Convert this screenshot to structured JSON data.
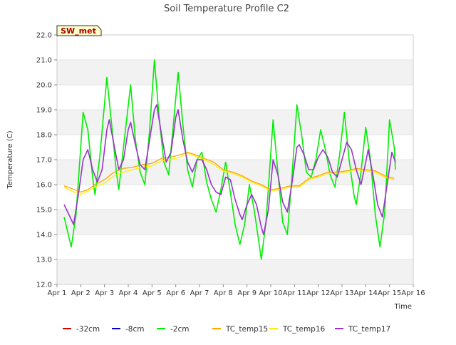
{
  "chart_data": {
    "type": "line",
    "title": "Soil Temperature Profile C2",
    "badge": "SW_met",
    "xlabel": "Time",
    "ylabel": "Temperature (C)",
    "x_ticks": [
      "Apr 1",
      "Apr 2",
      "Apr 3",
      "Apr 4",
      "Apr 5",
      "Apr 6",
      "Apr 7",
      "Apr 8",
      "Apr 9",
      "Apr 10",
      "Apr 11",
      "Apr 12",
      "Apr 13",
      "Apr 14",
      "Apr 15",
      "Apr 16"
    ],
    "x_range_days": [
      1,
      16
    ],
    "y_ticks": [
      "12.0",
      "13.0",
      "14.0",
      "15.0",
      "16.0",
      "17.0",
      "18.0",
      "19.0",
      "20.0",
      "21.0",
      "22.0"
    ],
    "ylim": [
      12.0,
      22.0
    ],
    "grid": "horizontal bands",
    "legend_position": "bottom",
    "legend": [
      {
        "name": "-32cm",
        "color": "#cc0000"
      },
      {
        "name": "-8cm",
        "color": "#0000cc"
      },
      {
        "name": "-2cm",
        "color": "#00ee00"
      },
      {
        "name": "TC_temp15",
        "color": "#ffa500"
      },
      {
        "name": "TC_temp16",
        "color": "#ffee00"
      },
      {
        "name": "TC_temp17",
        "color": "#9933cc"
      }
    ],
    "series": [
      {
        "name": "-2cm",
        "color": "#00ee00",
        "points": [
          [
            1.3,
            14.7
          ],
          [
            1.6,
            13.5
          ],
          [
            1.8,
            14.8
          ],
          [
            2.1,
            18.9
          ],
          [
            2.3,
            18.2
          ],
          [
            2.5,
            16.3
          ],
          [
            2.6,
            15.6
          ],
          [
            2.8,
            17.1
          ],
          [
            3.1,
            20.3
          ],
          [
            3.3,
            18.4
          ],
          [
            3.5,
            16.5
          ],
          [
            3.6,
            15.8
          ],
          [
            3.8,
            17.5
          ],
          [
            4.1,
            20.0
          ],
          [
            4.3,
            17.8
          ],
          [
            4.5,
            16.5
          ],
          [
            4.7,
            16.0
          ],
          [
            4.9,
            18.2
          ],
          [
            5.1,
            21.0
          ],
          [
            5.3,
            18.7
          ],
          [
            5.5,
            16.9
          ],
          [
            5.7,
            16.4
          ],
          [
            5.9,
            18.4
          ],
          [
            6.1,
            20.5
          ],
          [
            6.3,
            18.4
          ],
          [
            6.5,
            16.6
          ],
          [
            6.7,
            15.9
          ],
          [
            6.9,
            17.0
          ],
          [
            7.1,
            17.3
          ],
          [
            7.3,
            16.1
          ],
          [
            7.5,
            15.4
          ],
          [
            7.7,
            14.9
          ],
          [
            7.9,
            15.8
          ],
          [
            8.1,
            16.9
          ],
          [
            8.3,
            15.7
          ],
          [
            8.5,
            14.4
          ],
          [
            8.7,
            13.6
          ],
          [
            8.9,
            14.4
          ],
          [
            9.1,
            16.0
          ],
          [
            9.3,
            15.0
          ],
          [
            9.5,
            13.7
          ],
          [
            9.6,
            13.0
          ],
          [
            9.8,
            14.5
          ],
          [
            10.1,
            18.6
          ],
          [
            10.3,
            16.5
          ],
          [
            10.5,
            14.5
          ],
          [
            10.7,
            14.0
          ],
          [
            10.9,
            16.4
          ],
          [
            11.1,
            19.2
          ],
          [
            11.3,
            18.0
          ],
          [
            11.5,
            16.5
          ],
          [
            11.7,
            16.3
          ],
          [
            11.9,
            17.0
          ],
          [
            12.1,
            18.2
          ],
          [
            12.3,
            17.4
          ],
          [
            12.5,
            16.4
          ],
          [
            12.7,
            15.9
          ],
          [
            12.9,
            17.2
          ],
          [
            13.1,
            18.9
          ],
          [
            13.3,
            17.0
          ],
          [
            13.5,
            15.6
          ],
          [
            13.6,
            15.2
          ],
          [
            13.8,
            16.5
          ],
          [
            14.0,
            18.3
          ],
          [
            14.2,
            17.0
          ],
          [
            14.4,
            14.8
          ],
          [
            14.6,
            13.5
          ],
          [
            14.8,
            14.9
          ],
          [
            15.0,
            18.6
          ],
          [
            15.2,
            17.5
          ],
          [
            15.25,
            16.6
          ]
        ]
      },
      {
        "name": "TC_temp15",
        "color": "#ffa500",
        "points": [
          [
            1.3,
            15.95
          ],
          [
            1.6,
            15.85
          ],
          [
            2.0,
            15.7
          ],
          [
            2.3,
            15.8
          ],
          [
            2.6,
            16.0
          ],
          [
            3.0,
            16.2
          ],
          [
            3.4,
            16.5
          ],
          [
            3.8,
            16.65
          ],
          [
            4.2,
            16.7
          ],
          [
            4.6,
            16.8
          ],
          [
            5.0,
            16.85
          ],
          [
            5.4,
            17.05
          ],
          [
            5.8,
            17.1
          ],
          [
            6.2,
            17.2
          ],
          [
            6.5,
            17.3
          ],
          [
            6.8,
            17.2
          ],
          [
            7.2,
            17.05
          ],
          [
            7.6,
            16.9
          ],
          [
            8.0,
            16.6
          ],
          [
            8.4,
            16.5
          ],
          [
            8.8,
            16.35
          ],
          [
            9.2,
            16.15
          ],
          [
            9.6,
            16.0
          ],
          [
            10.0,
            15.8
          ],
          [
            10.4,
            15.85
          ],
          [
            10.8,
            15.95
          ],
          [
            11.2,
            15.95
          ],
          [
            11.6,
            16.25
          ],
          [
            12.0,
            16.35
          ],
          [
            12.4,
            16.5
          ],
          [
            12.8,
            16.5
          ],
          [
            13.2,
            16.55
          ],
          [
            13.6,
            16.65
          ],
          [
            14.0,
            16.6
          ],
          [
            14.4,
            16.55
          ],
          [
            14.8,
            16.35
          ],
          [
            15.2,
            16.25
          ]
        ]
      },
      {
        "name": "TC_temp16",
        "color": "#ffee00",
        "points": [
          [
            1.3,
            15.9
          ],
          [
            1.6,
            15.75
          ],
          [
            2.0,
            15.6
          ],
          [
            2.3,
            15.75
          ],
          [
            2.6,
            15.9
          ],
          [
            3.0,
            16.05
          ],
          [
            3.4,
            16.35
          ],
          [
            3.8,
            16.5
          ],
          [
            4.2,
            16.6
          ],
          [
            4.6,
            16.7
          ],
          [
            5.0,
            16.75
          ],
          [
            5.4,
            16.95
          ],
          [
            5.8,
            17.0
          ],
          [
            6.2,
            17.1
          ],
          [
            6.5,
            17.25
          ],
          [
            6.8,
            17.15
          ],
          [
            7.2,
            17.0
          ],
          [
            7.6,
            16.8
          ],
          [
            8.0,
            16.55
          ],
          [
            8.4,
            16.45
          ],
          [
            8.8,
            16.3
          ],
          [
            9.2,
            16.1
          ],
          [
            9.6,
            15.95
          ],
          [
            10.0,
            15.75
          ],
          [
            10.4,
            15.8
          ],
          [
            10.8,
            15.9
          ],
          [
            11.2,
            15.9
          ],
          [
            11.6,
            16.2
          ],
          [
            12.0,
            16.3
          ],
          [
            12.4,
            16.45
          ],
          [
            12.8,
            16.45
          ],
          [
            13.2,
            16.5
          ],
          [
            13.6,
            16.6
          ],
          [
            14.0,
            16.55
          ],
          [
            14.4,
            16.5
          ],
          [
            14.8,
            16.3
          ],
          [
            15.2,
            16.2
          ]
        ]
      },
      {
        "name": "TC_temp17",
        "color": "#9933cc",
        "points": [
          [
            1.3,
            15.2
          ],
          [
            1.5,
            14.8
          ],
          [
            1.7,
            14.4
          ],
          [
            1.9,
            15.6
          ],
          [
            2.1,
            17.0
          ],
          [
            2.3,
            17.4
          ],
          [
            2.5,
            16.6
          ],
          [
            2.7,
            16.1
          ],
          [
            2.9,
            16.6
          ],
          [
            3.1,
            18.2
          ],
          [
            3.2,
            18.6
          ],
          [
            3.4,
            17.6
          ],
          [
            3.6,
            16.6
          ],
          [
            3.8,
            17.0
          ],
          [
            4.0,
            18.2
          ],
          [
            4.1,
            18.5
          ],
          [
            4.3,
            17.6
          ],
          [
            4.5,
            16.8
          ],
          [
            4.7,
            16.6
          ],
          [
            4.9,
            17.8
          ],
          [
            5.1,
            19.0
          ],
          [
            5.2,
            19.2
          ],
          [
            5.4,
            18.0
          ],
          [
            5.6,
            16.9
          ],
          [
            5.8,
            17.3
          ],
          [
            6.0,
            18.7
          ],
          [
            6.1,
            19.0
          ],
          [
            6.3,
            17.8
          ],
          [
            6.5,
            16.9
          ],
          [
            6.7,
            16.5
          ],
          [
            6.9,
            17.0
          ],
          [
            7.1,
            17.0
          ],
          [
            7.3,
            16.6
          ],
          [
            7.5,
            16.0
          ],
          [
            7.7,
            15.7
          ],
          [
            7.9,
            15.6
          ],
          [
            8.1,
            16.3
          ],
          [
            8.3,
            16.2
          ],
          [
            8.5,
            15.4
          ],
          [
            8.7,
            14.8
          ],
          [
            8.8,
            14.6
          ],
          [
            9.0,
            15.2
          ],
          [
            9.2,
            15.6
          ],
          [
            9.4,
            15.2
          ],
          [
            9.6,
            14.3
          ],
          [
            9.7,
            14.0
          ],
          [
            9.9,
            15.0
          ],
          [
            10.1,
            17.0
          ],
          [
            10.3,
            16.4
          ],
          [
            10.5,
            15.3
          ],
          [
            10.7,
            14.9
          ],
          [
            10.9,
            16.1
          ],
          [
            11.1,
            17.5
          ],
          [
            11.2,
            17.6
          ],
          [
            11.4,
            17.2
          ],
          [
            11.6,
            16.6
          ],
          [
            11.8,
            16.6
          ],
          [
            12.0,
            17.1
          ],
          [
            12.2,
            17.4
          ],
          [
            12.4,
            17.1
          ],
          [
            12.6,
            16.5
          ],
          [
            12.8,
            16.3
          ],
          [
            13.0,
            17.0
          ],
          [
            13.2,
            17.7
          ],
          [
            13.4,
            17.4
          ],
          [
            13.6,
            16.6
          ],
          [
            13.8,
            16.0
          ],
          [
            14.0,
            16.9
          ],
          [
            14.1,
            17.4
          ],
          [
            14.3,
            16.4
          ],
          [
            14.5,
            15.2
          ],
          [
            14.7,
            14.7
          ],
          [
            14.9,
            16.0
          ],
          [
            15.1,
            17.3
          ],
          [
            15.25,
            16.9
          ]
        ]
      }
    ]
  }
}
